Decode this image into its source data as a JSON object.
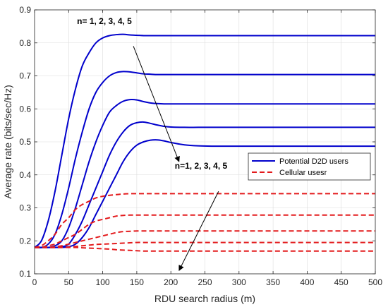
{
  "chart_data": {
    "type": "line",
    "xlabel": "RDU search radius (m)",
    "ylabel": "Average rate (bits/sec/Hz)",
    "xlim": [
      0,
      500
    ],
    "ylim": [
      0.1,
      0.9
    ],
    "xticks": [
      0,
      50,
      100,
      150,
      200,
      250,
      300,
      350,
      400,
      450,
      500
    ],
    "yticks": [
      0.1,
      0.2,
      0.3,
      0.4,
      0.5,
      0.6,
      0.7,
      0.8,
      0.9
    ],
    "grid": true,
    "legend_position": "center-right",
    "legend": [
      {
        "label": "Potential D2D users",
        "color": "#0000cc",
        "style": "solid"
      },
      {
        "label": "Cellular usesr",
        "color": "#e31a1c",
        "style": "dashed"
      }
    ],
    "annotations": [
      {
        "text": "n= 1, 2, 3, 4, 5",
        "arrow_from": [
          145,
          0.79
        ],
        "arrow_to": [
          212,
          0.44
        ]
      },
      {
        "text": "n=1, 2, 3, 4, 5",
        "arrow_from": [
          270,
          0.35
        ],
        "arrow_to": [
          212,
          0.11
        ]
      }
    ],
    "x": [
      0,
      10,
      20,
      30,
      40,
      50,
      60,
      70,
      80,
      90,
      100,
      110,
      120,
      130,
      140,
      150,
      160,
      170,
      180,
      190,
      200,
      220,
      240,
      260,
      280,
      300,
      350,
      400,
      450,
      500
    ],
    "series": [
      {
        "group": "Potential D2D users",
        "color": "#0000cc",
        "dash": "solid",
        "values": [
          0.18,
          0.2,
          0.26,
          0.35,
          0.46,
          0.57,
          0.66,
          0.73,
          0.77,
          0.8,
          0.815,
          0.822,
          0.825,
          0.826,
          0.824,
          0.823,
          0.822,
          0.822,
          0.822,
          0.822,
          0.822,
          0.822,
          0.822,
          0.822,
          0.822,
          0.822,
          0.822,
          0.822,
          0.822,
          0.822
        ]
      },
      {
        "group": "Potential D2D users",
        "color": "#0000cc",
        "dash": "solid",
        "values": [
          0.18,
          0.18,
          0.19,
          0.22,
          0.28,
          0.36,
          0.45,
          0.53,
          0.6,
          0.65,
          0.68,
          0.7,
          0.71,
          0.713,
          0.712,
          0.709,
          0.706,
          0.705,
          0.704,
          0.704,
          0.704,
          0.704,
          0.704,
          0.704,
          0.704,
          0.704,
          0.704,
          0.704,
          0.704,
          0.704
        ]
      },
      {
        "group": "Potential D2D users",
        "color": "#0000cc",
        "dash": "solid",
        "values": [
          0.18,
          0.18,
          0.18,
          0.185,
          0.2,
          0.24,
          0.3,
          0.37,
          0.44,
          0.5,
          0.55,
          0.59,
          0.61,
          0.623,
          0.628,
          0.627,
          0.622,
          0.618,
          0.616,
          0.615,
          0.615,
          0.615,
          0.615,
          0.615,
          0.615,
          0.615,
          0.615,
          0.615,
          0.615,
          0.615
        ]
      },
      {
        "group": "Potential D2D users",
        "color": "#0000cc",
        "dash": "solid",
        "values": [
          0.18,
          0.18,
          0.18,
          0.18,
          0.182,
          0.19,
          0.22,
          0.26,
          0.31,
          0.36,
          0.41,
          0.46,
          0.5,
          0.53,
          0.55,
          0.558,
          0.56,
          0.556,
          0.551,
          0.547,
          0.545,
          0.544,
          0.544,
          0.544,
          0.544,
          0.544,
          0.544,
          0.544,
          0.544,
          0.544
        ]
      },
      {
        "group": "Potential D2D users",
        "color": "#0000cc",
        "dash": "solid",
        "values": [
          0.18,
          0.18,
          0.18,
          0.18,
          0.18,
          0.182,
          0.19,
          0.21,
          0.24,
          0.28,
          0.32,
          0.36,
          0.4,
          0.44,
          0.47,
          0.49,
          0.5,
          0.505,
          0.506,
          0.503,
          0.498,
          0.491,
          0.488,
          0.487,
          0.487,
          0.487,
          0.487,
          0.487,
          0.487,
          0.487
        ]
      },
      {
        "group": "Cellular usesr",
        "color": "#e31a1c",
        "dash": "dashed",
        "values": [
          0.18,
          0.185,
          0.2,
          0.22,
          0.25,
          0.27,
          0.295,
          0.31,
          0.32,
          0.33,
          0.335,
          0.338,
          0.34,
          0.342,
          0.343,
          0.343,
          0.343,
          0.343,
          0.343,
          0.343,
          0.343,
          0.343,
          0.343,
          0.343,
          0.343,
          0.343,
          0.343,
          0.343,
          0.343,
          0.343
        ]
      },
      {
        "group": "Cellular usesr",
        "color": "#e31a1c",
        "dash": "dashed",
        "values": [
          0.18,
          0.18,
          0.185,
          0.19,
          0.2,
          0.21,
          0.22,
          0.235,
          0.25,
          0.26,
          0.265,
          0.27,
          0.275,
          0.277,
          0.278,
          0.278,
          0.278,
          0.278,
          0.278,
          0.278,
          0.278,
          0.278,
          0.278,
          0.278,
          0.278,
          0.278,
          0.278,
          0.278,
          0.278,
          0.278
        ]
      },
      {
        "group": "Cellular usesr",
        "color": "#e31a1c",
        "dash": "dashed",
        "values": [
          0.18,
          0.18,
          0.18,
          0.182,
          0.185,
          0.19,
          0.195,
          0.2,
          0.205,
          0.21,
          0.215,
          0.22,
          0.225,
          0.228,
          0.229,
          0.23,
          0.23,
          0.23,
          0.23,
          0.23,
          0.23,
          0.23,
          0.23,
          0.23,
          0.23,
          0.23,
          0.23,
          0.23,
          0.23,
          0.23
        ]
      },
      {
        "group": "Cellular usesr",
        "color": "#e31a1c",
        "dash": "dashed",
        "values": [
          0.18,
          0.18,
          0.18,
          0.18,
          0.18,
          0.181,
          0.183,
          0.185,
          0.187,
          0.189,
          0.19,
          0.191,
          0.192,
          0.193,
          0.194,
          0.195,
          0.195,
          0.195,
          0.195,
          0.195,
          0.195,
          0.195,
          0.195,
          0.195,
          0.195,
          0.195,
          0.195,
          0.195,
          0.195,
          0.195
        ]
      },
      {
        "group": "Cellular usesr",
        "color": "#e31a1c",
        "dash": "dashed",
        "values": [
          0.18,
          0.18,
          0.18,
          0.18,
          0.18,
          0.18,
          0.18,
          0.179,
          0.178,
          0.177,
          0.176,
          0.175,
          0.173,
          0.172,
          0.171,
          0.17,
          0.169,
          0.169,
          0.169,
          0.169,
          0.169,
          0.169,
          0.169,
          0.169,
          0.169,
          0.169,
          0.169,
          0.169,
          0.169,
          0.169
        ]
      }
    ]
  }
}
